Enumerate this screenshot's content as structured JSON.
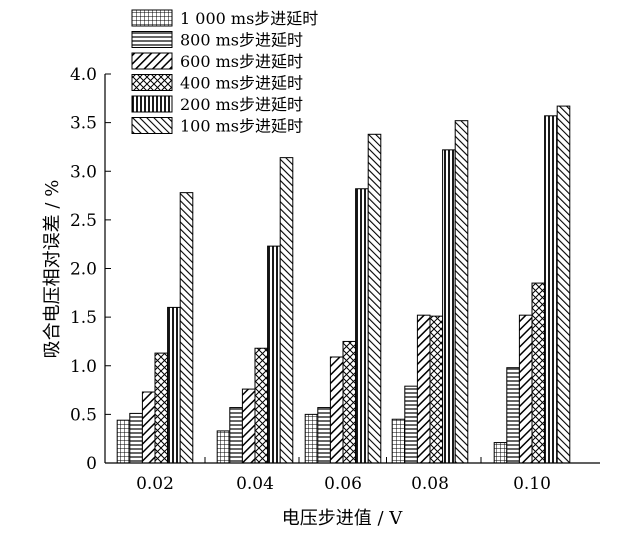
{
  "chart_data": {
    "type": "bar",
    "title": "",
    "xlabel": "电压步进值 / V",
    "ylabel": "吸合电压相对误差 / %",
    "categories": [
      "0.02",
      "0.04",
      "0.06",
      "0.08",
      "0.10"
    ],
    "ylim": [
      0,
      4.0
    ],
    "yticks": [
      0,
      0.5,
      1.0,
      1.5,
      2.0,
      2.5,
      3.0,
      3.5,
      4.0
    ],
    "ytick_labels": [
      "0",
      "0.5",
      "1.0",
      "1.5",
      "2.0",
      "2.5",
      "3.0",
      "3.5",
      "4.0"
    ],
    "grid": false,
    "legend_position": "top-left",
    "series": [
      {
        "name": "1 000 ms步进延时",
        "pattern": "grid",
        "values": [
          0.44,
          0.33,
          0.5,
          0.45,
          0.21
        ]
      },
      {
        "name": "800 ms步进延时",
        "pattern": "horizontal-lines",
        "values": [
          0.51,
          0.57,
          0.57,
          0.79,
          0.98
        ]
      },
      {
        "name": "600 ms步进延时",
        "pattern": "diagonal-down",
        "values": [
          0.73,
          0.76,
          1.09,
          1.52,
          1.52
        ]
      },
      {
        "name": "400 ms步进延时",
        "pattern": "crosshatch",
        "values": [
          1.13,
          1.18,
          1.25,
          1.51,
          1.85
        ]
      },
      {
        "name": "200 ms步进延时",
        "pattern": "vertical-lines",
        "values": [
          1.6,
          2.23,
          2.82,
          3.22,
          3.57
        ]
      },
      {
        "name": "100 ms步进延时",
        "pattern": "diagonal-up",
        "values": [
          2.78,
          3.14,
          3.38,
          3.52,
          3.67
        ]
      }
    ]
  }
}
